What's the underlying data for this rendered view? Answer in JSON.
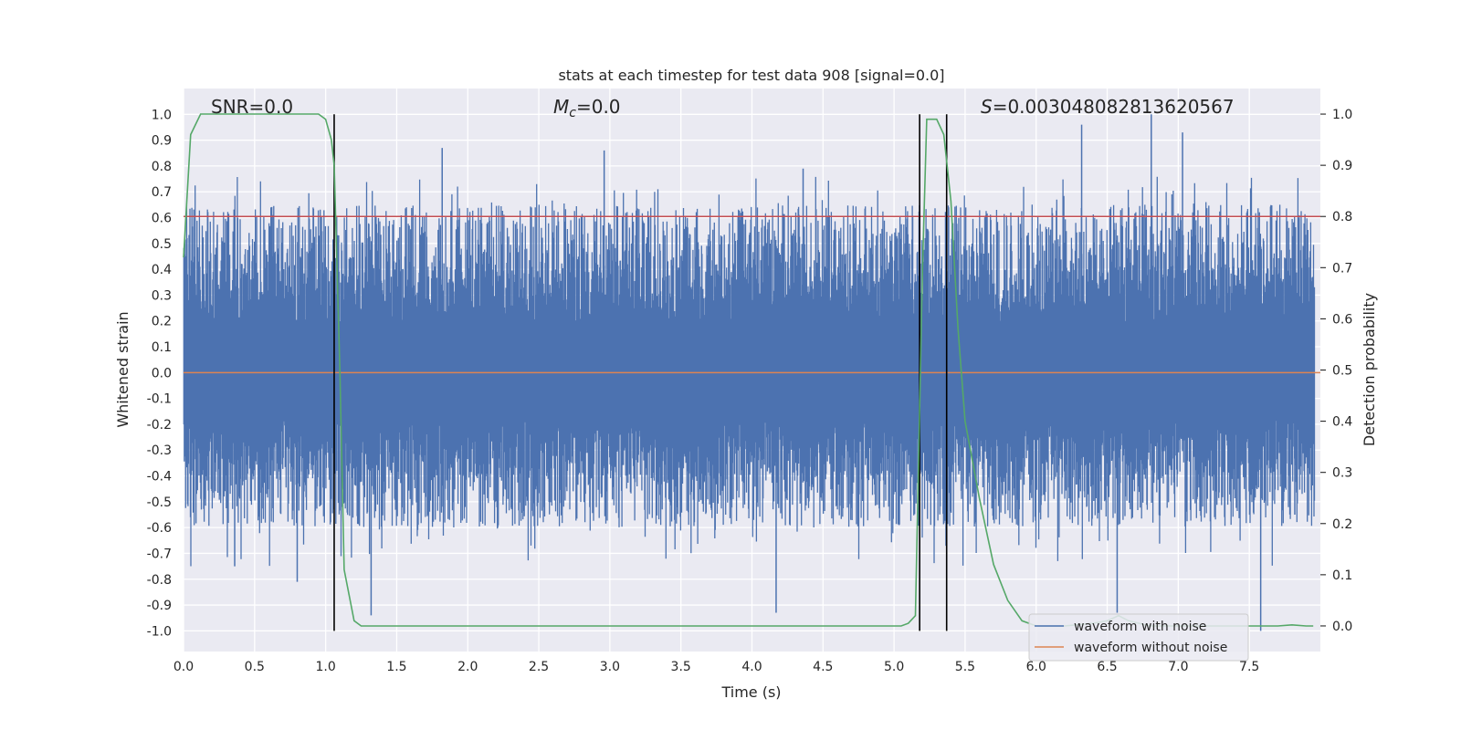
{
  "chart_data": {
    "type": "line",
    "title": "stats at each timestep for test data 908 [signal=0.0]",
    "xlabel": "Time (s)",
    "ylabel": "Whitened strain",
    "y2label": "Detection probability",
    "xlim": [
      0.0,
      8.0
    ],
    "ylim": [
      -1.08,
      1.1
    ],
    "y2lim": [
      -0.05,
      1.05
    ],
    "xticks": [
      "0.0",
      "0.5",
      "1.0",
      "1.5",
      "2.0",
      "2.5",
      "3.0",
      "3.5",
      "4.0",
      "4.5",
      "5.0",
      "5.5",
      "6.0",
      "6.5",
      "7.0",
      "7.5"
    ],
    "yticks": [
      "1.0",
      "0.9",
      "0.8",
      "0.7",
      "0.6",
      "0.5",
      "0.4",
      "0.3",
      "0.2",
      "0.1",
      "0.0",
      "-0.1",
      "-0.2",
      "-0.3",
      "-0.4",
      "-0.5",
      "-0.6",
      "-0.7",
      "-0.8",
      "-0.9",
      "-1.0"
    ],
    "y2ticks": [
      "1.0",
      "0.9",
      "0.8",
      "0.7",
      "0.6",
      "0.5",
      "0.4",
      "0.3",
      "0.2",
      "0.1",
      "0.0"
    ],
    "annotations": {
      "snr": "SNR=0.0",
      "mc_symbol": "M",
      "mc_sub": "c",
      "mc_value": "=0.0",
      "s_symbol": "S",
      "s_value": "=0.003048082813620567"
    },
    "threshold": {
      "value": 0.8,
      "color": "#c44e52",
      "axis": "right"
    },
    "vertical_lines": [
      1.06,
      5.18,
      5.37
    ],
    "series": [
      {
        "name": "waveform with noise",
        "color": "#4c72b0",
        "axis": "left",
        "notable_peaks": [
          {
            "x": 0.36,
            "y": -0.75
          },
          {
            "x": 0.63,
            "y": 0.61
          },
          {
            "x": 0.8,
            "y": -0.81
          },
          {
            "x": 1.32,
            "y": -0.94
          },
          {
            "x": 1.82,
            "y": 0.87
          },
          {
            "x": 2.96,
            "y": 0.86
          },
          {
            "x": 4.17,
            "y": -0.93
          },
          {
            "x": 4.36,
            "y": 0.79
          },
          {
            "x": 6.32,
            "y": 0.96
          },
          {
            "x": 6.57,
            "y": -0.93
          },
          {
            "x": 6.81,
            "y": 1.0
          },
          {
            "x": 7.03,
            "y": 0.93
          },
          {
            "x": 7.58,
            "y": -1.0
          },
          {
            "x": 7.82,
            "y": -0.55
          }
        ]
      },
      {
        "name": "waveform without noise",
        "color": "#dd8452",
        "axis": "left",
        "x": [
          0.0,
          8.0
        ],
        "y": [
          0.0,
          0.0
        ]
      },
      {
        "name": "detection probability",
        "color": "#55a868",
        "axis": "right",
        "x": [
          0.0,
          0.05,
          0.12,
          0.2,
          0.4,
          0.6,
          0.8,
          0.95,
          1.0,
          1.04,
          1.06,
          1.1,
          1.13,
          1.2,
          1.25,
          1.3,
          1.5,
          2.0,
          3.0,
          4.0,
          4.5,
          5.0,
          5.05,
          5.1,
          5.15,
          5.2,
          5.23,
          5.3,
          5.35,
          5.4,
          5.45,
          5.5,
          5.6,
          5.7,
          5.8,
          5.9,
          6.0,
          6.2,
          6.4,
          6.5,
          6.58,
          6.65,
          6.8,
          7.0,
          7.5,
          7.7,
          7.8,
          7.9,
          7.95
        ],
        "y": [
          0.72,
          0.96,
          1.0,
          1.0,
          1.0,
          1.0,
          1.0,
          1.0,
          0.99,
          0.95,
          0.9,
          0.5,
          0.11,
          0.01,
          0.0,
          0.0,
          0.0,
          0.0,
          0.0,
          0.0,
          0.0,
          0.0,
          0.0,
          0.005,
          0.02,
          0.7,
          0.99,
          0.99,
          0.96,
          0.83,
          0.58,
          0.4,
          0.25,
          0.12,
          0.05,
          0.01,
          0.0,
          0.0,
          0.005,
          0.01,
          0.02,
          0.01,
          0.0,
          0.0,
          0.0,
          0.0,
          0.002,
          0.0,
          0.0
        ]
      }
    ],
    "legend": [
      "waveform with noise",
      "waveform without noise"
    ],
    "legend_position": "lower-right",
    "grid": true
  }
}
